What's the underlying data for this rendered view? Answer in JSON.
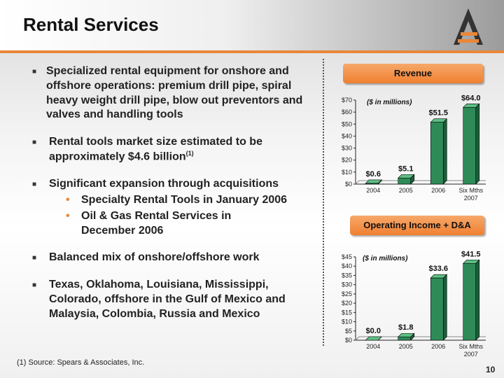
{
  "header": {
    "title": "Rental Services"
  },
  "bullets": [
    {
      "text": "Specialized rental equipment for onshore and offshore operations: premium drill pipe, spiral heavy weight drill pipe, blow out preventors and valves and handling tools"
    },
    {
      "text": "Rental tools market size estimated to be approximately $4.6 billion",
      "sup": "(1)"
    },
    {
      "text": "Significant expansion through acquisitions",
      "sub": [
        "Specialty Rental Tools in January 2006",
        "Oil & Gas Rental Services in December 2006"
      ]
    },
    {
      "text": "Balanced mix of onshore/offshore work"
    },
    {
      "text": "Texas, Oklahoma, Louisiana, Mississippi, Colorado, offshore in the Gulf of Mexico and Malaysia, Colombia, Russia and Mexico"
    }
  ],
  "footnote": "(1)  Source: Spears & Associates, Inc.",
  "page_number": "10",
  "colors": {
    "accent": "#e8873a",
    "bar": "#2e8b57"
  },
  "chart_data": [
    {
      "type": "bar",
      "title": "Revenue",
      "subtitle": "($ in millions)",
      "categories": [
        [
          "2004"
        ],
        [
          "2005"
        ],
        [
          "2006"
        ],
        [
          "Six Mths",
          "2007"
        ]
      ],
      "values": [
        0.6,
        5.1,
        51.5,
        64.0
      ],
      "value_labels": [
        "$0.6",
        "$5.1",
        "$51.5",
        "$64.0"
      ],
      "ylim": [
        0,
        70
      ],
      "yticks": [
        0,
        10,
        20,
        30,
        40,
        50,
        60,
        70
      ],
      "ytick_labels": [
        "$0",
        "$10",
        "$20",
        "$30",
        "$40",
        "$50",
        "$60",
        "$70"
      ]
    },
    {
      "type": "bar",
      "title": "Operating Income + D&A",
      "subtitle": "($ in millions)",
      "categories": [
        [
          "2004"
        ],
        [
          "2005"
        ],
        [
          "2006"
        ],
        [
          "Six Mths",
          "2007"
        ]
      ],
      "values": [
        0.0,
        1.8,
        33.6,
        41.5
      ],
      "value_labels": [
        "$0.0",
        "$1.8",
        "$33.6",
        "$41.5"
      ],
      "ylim": [
        0,
        45
      ],
      "yticks": [
        0,
        5,
        10,
        15,
        20,
        25,
        30,
        35,
        40,
        45
      ],
      "ytick_labels": [
        "$0",
        "$5",
        "$10",
        "$15",
        "$20",
        "$25",
        "$30",
        "$35",
        "$40",
        "$45"
      ]
    }
  ]
}
